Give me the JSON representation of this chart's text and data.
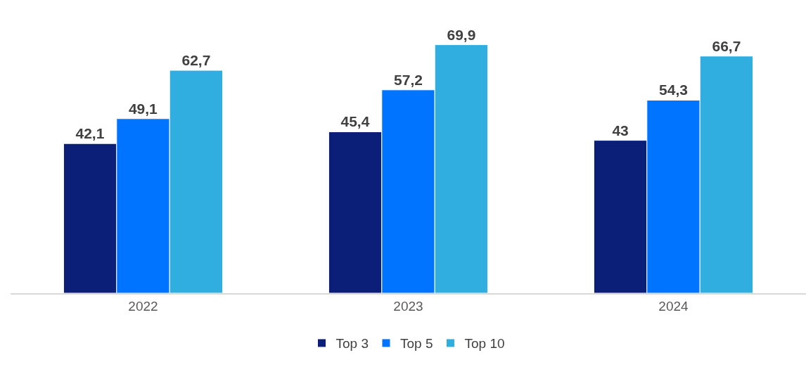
{
  "chart_data": {
    "type": "bar",
    "categories": [
      "2022",
      "2023",
      "2024"
    ],
    "series": [
      {
        "name": "Top 3",
        "color": "#0b1f78",
        "values": [
          42.1,
          45.4,
          43
        ],
        "value_labels": [
          "42,1",
          "45,4",
          "43"
        ]
      },
      {
        "name": "Top 5",
        "color": "#0073ff",
        "values": [
          49.1,
          57.2,
          54.3
        ],
        "value_labels": [
          "49,1",
          "57,2",
          "54,3"
        ]
      },
      {
        "name": "Top 10",
        "color": "#30aee0",
        "values": [
          62.7,
          69.9,
          66.7
        ],
        "value_labels": [
          "62,7",
          "69,9",
          "66,7"
        ]
      }
    ],
    "grid": false,
    "legend": "bottom"
  }
}
